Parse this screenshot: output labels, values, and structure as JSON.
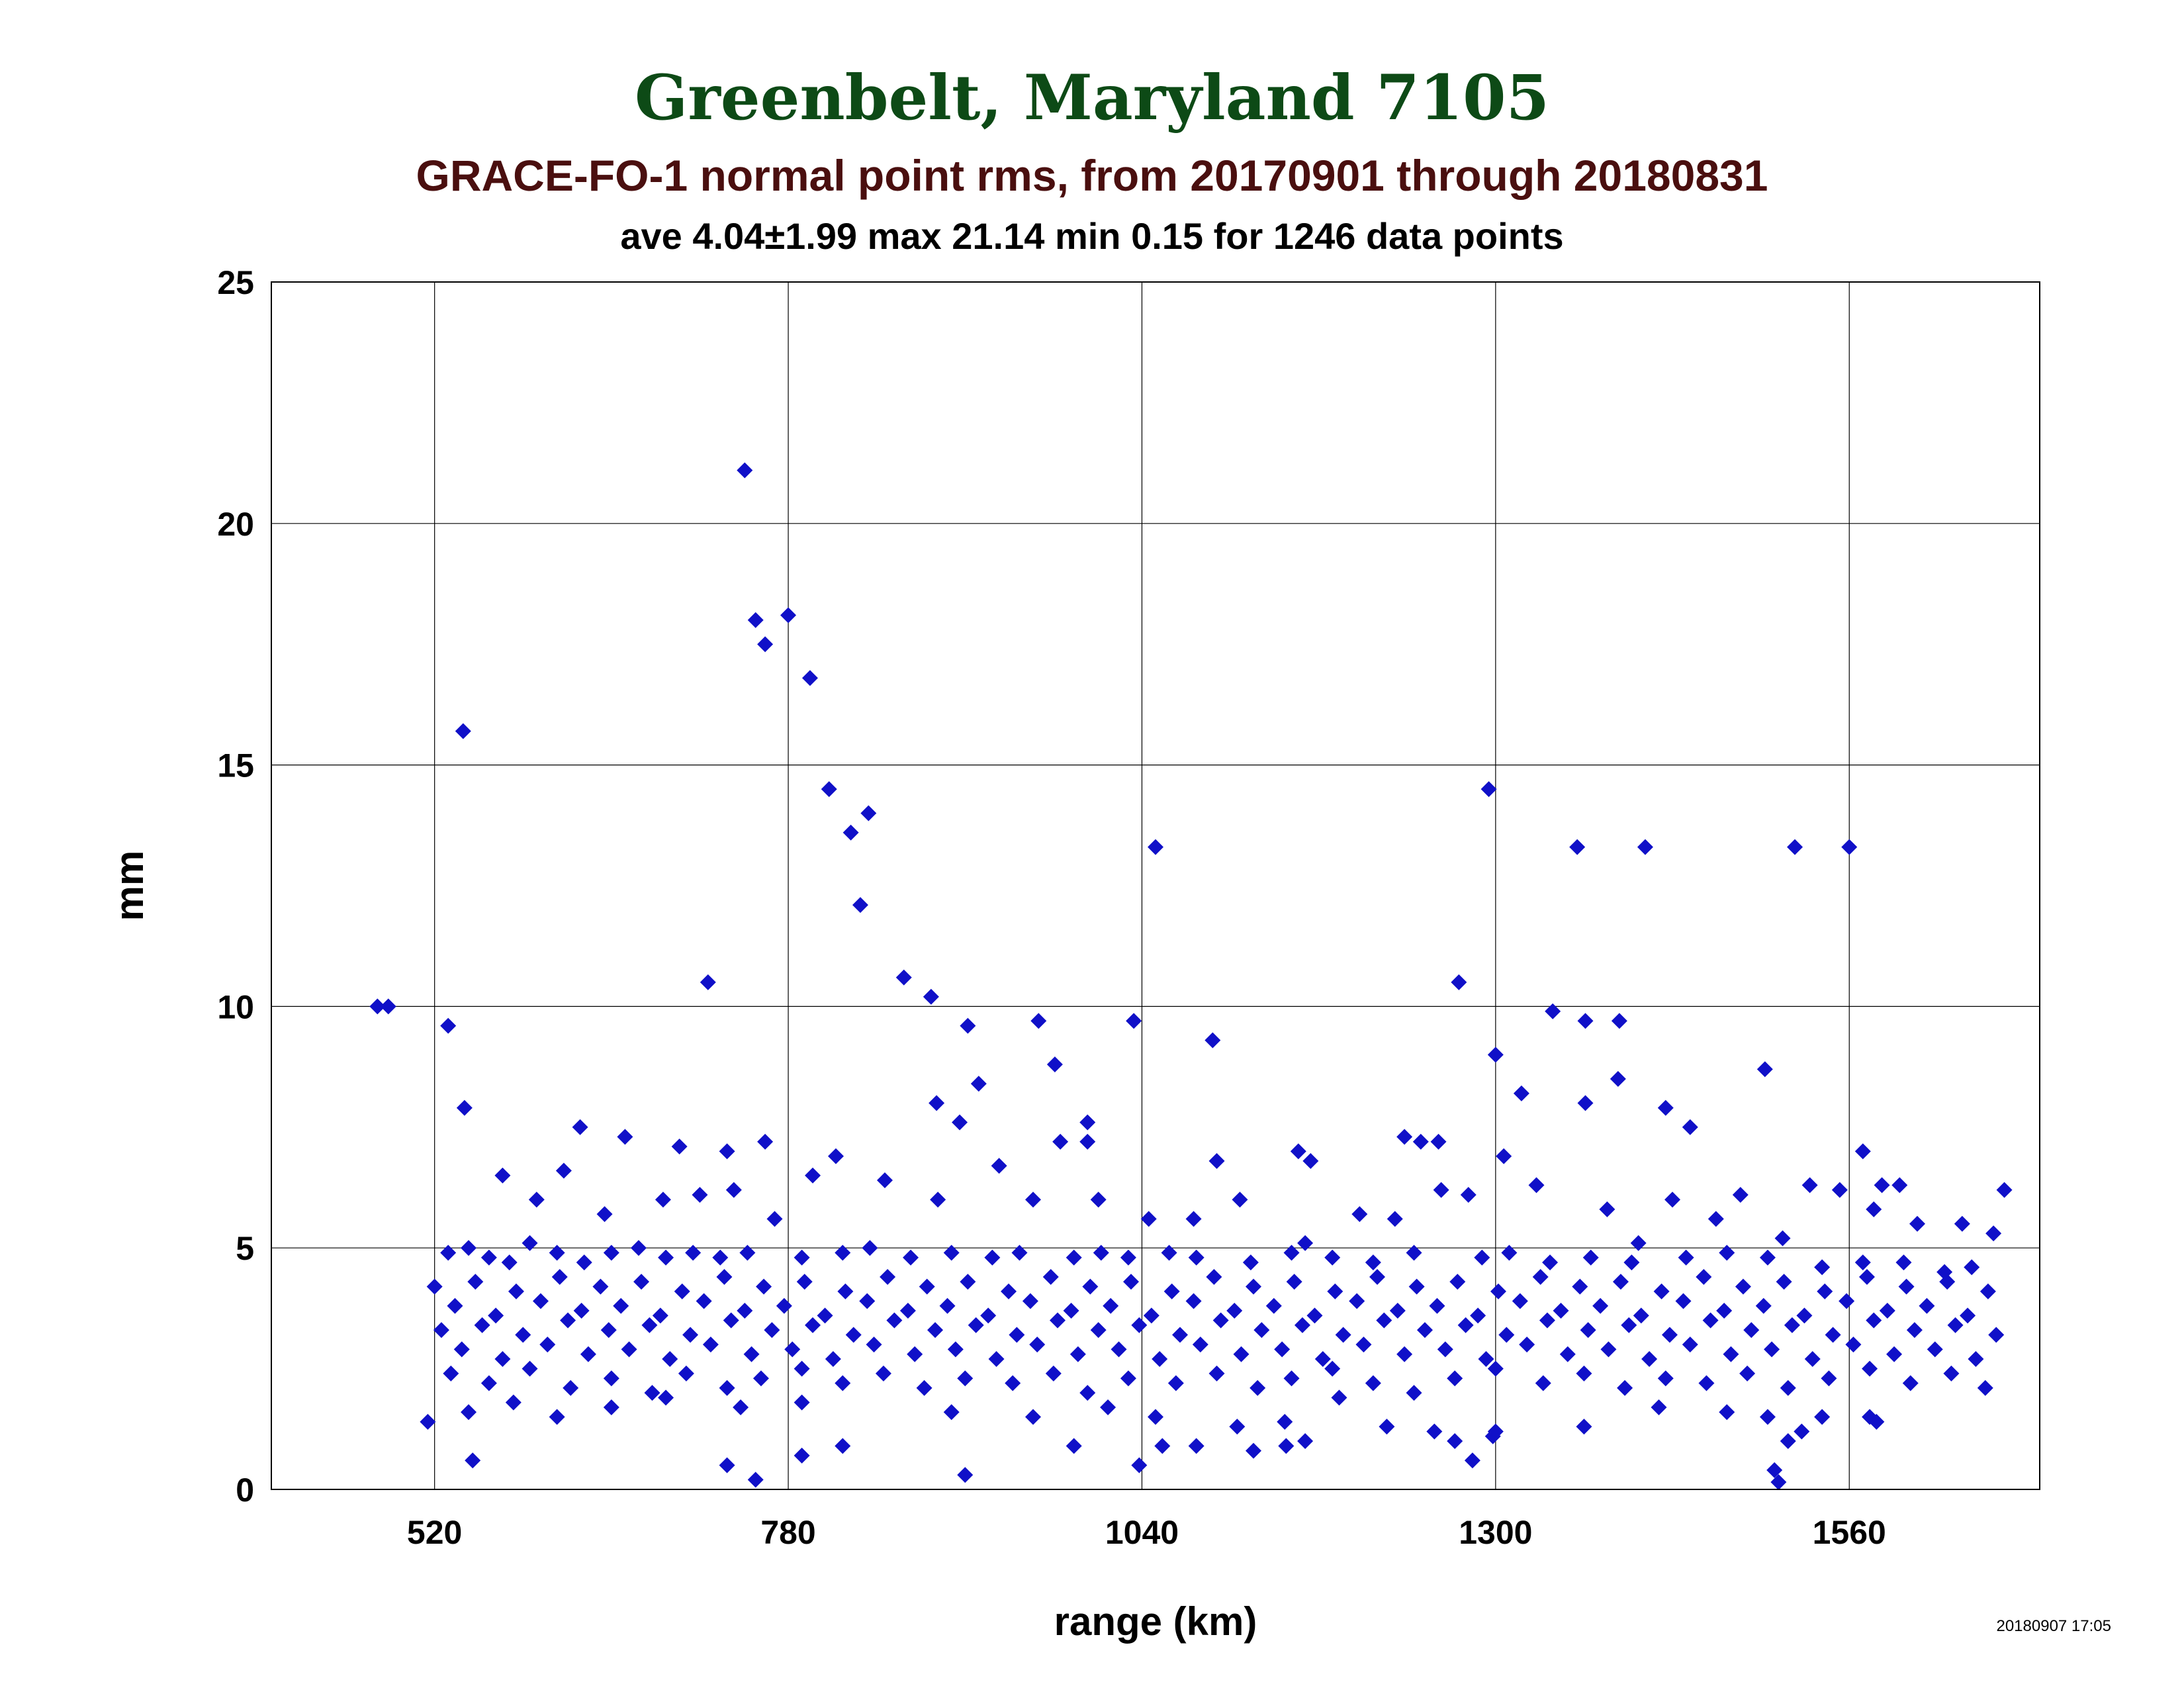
{
  "page": {
    "title": "Greenbelt, Maryland 7105",
    "subtitle": "GRACE-FO-1 normal point rms, from 20170901 through 20180831",
    "stats": "ave 4.04±1.99 max 21.14 min 0.15 for 1246 data points",
    "timestamp": "20180907 17:05"
  },
  "colors": {
    "title": "#0d4a16",
    "subtitle": "#4a0f0f",
    "text": "#000000",
    "points": "#1010c8",
    "grid": "#000000"
  },
  "chart_data": {
    "type": "scatter",
    "xlabel": "range (km)",
    "ylabel": "mm",
    "xlim": [
      400,
      1700
    ],
    "ylim": [
      0,
      25
    ],
    "xticks": [
      "520",
      "780",
      "1040",
      "1300",
      "1560"
    ],
    "yticks": [
      "0",
      "5",
      "10",
      "15",
      "20",
      "25"
    ],
    "grid": true,
    "marker": "diamond",
    "points": [
      [
        748,
        21.1
      ],
      [
        756,
        18.0
      ],
      [
        780,
        18.1
      ],
      [
        763,
        17.5
      ],
      [
        796,
        16.8
      ],
      [
        541,
        15.7
      ],
      [
        810,
        14.5
      ],
      [
        839,
        14.0
      ],
      [
        826,
        13.6
      ],
      [
        1050,
        13.3
      ],
      [
        1295,
        14.5
      ],
      [
        1360,
        13.3
      ],
      [
        1410,
        13.3
      ],
      [
        1520,
        13.3
      ],
      [
        1560,
        13.3
      ],
      [
        833,
        12.1
      ],
      [
        478,
        10.0
      ],
      [
        486,
        10.0
      ],
      [
        865,
        10.6
      ],
      [
        721,
        10.5
      ],
      [
        1273,
        10.5
      ],
      [
        885,
        10.2
      ],
      [
        530,
        9.6
      ],
      [
        1034,
        9.7
      ],
      [
        1092,
        9.3
      ],
      [
        912,
        9.6
      ],
      [
        964,
        9.7
      ],
      [
        1342,
        9.9
      ],
      [
        1366,
        9.7
      ],
      [
        1391,
        9.7
      ],
      [
        1300,
        9.0
      ],
      [
        1498,
        8.7
      ],
      [
        920,
        8.4
      ],
      [
        889,
        8.0
      ],
      [
        1366,
        8.0
      ],
      [
        1390,
        8.5
      ],
      [
        1425,
        7.9
      ],
      [
        906,
        7.6
      ],
      [
        976,
        8.8
      ],
      [
        1000,
        7.6
      ],
      [
        542,
        7.9
      ],
      [
        627,
        7.5
      ],
      [
        660,
        7.3
      ],
      [
        700,
        7.1
      ],
      [
        735,
        7.0
      ],
      [
        763,
        7.2
      ],
      [
        815,
        6.9
      ],
      [
        980,
        7.2
      ],
      [
        1000,
        7.2
      ],
      [
        1095,
        6.8
      ],
      [
        1155,
        7.0
      ],
      [
        1164,
        6.8
      ],
      [
        1233,
        7.3
      ],
      [
        1245,
        7.2
      ],
      [
        1258,
        7.2
      ],
      [
        1306,
        6.9
      ],
      [
        1319,
        8.2
      ],
      [
        1443,
        7.5
      ],
      [
        1570,
        7.0
      ],
      [
        1584,
        6.3
      ],
      [
        1597,
        6.3
      ],
      [
        1674,
        6.2
      ],
      [
        570,
        6.5
      ],
      [
        595,
        6.0
      ],
      [
        615,
        6.6
      ],
      [
        645,
        5.7
      ],
      [
        688,
        6.0
      ],
      [
        715,
        6.1
      ],
      [
        740,
        6.2
      ],
      [
        770,
        5.6
      ],
      [
        798,
        6.5
      ],
      [
        851,
        6.4
      ],
      [
        890,
        6.0
      ],
      [
        935,
        6.7
      ],
      [
        960,
        6.0
      ],
      [
        1008,
        6.0
      ],
      [
        1045,
        5.6
      ],
      [
        1078,
        5.6
      ],
      [
        1112,
        6.0
      ],
      [
        1160,
        5.1
      ],
      [
        1200,
        5.7
      ],
      [
        1226,
        5.6
      ],
      [
        1260,
        6.2
      ],
      [
        1280,
        6.1
      ],
      [
        1330,
        6.3
      ],
      [
        1382,
        5.8
      ],
      [
        1405,
        5.1
      ],
      [
        1430,
        6.0
      ],
      [
        1462,
        5.6
      ],
      [
        1480,
        6.1
      ],
      [
        1511,
        5.2
      ],
      [
        1531,
        6.3
      ],
      [
        1553,
        6.2
      ],
      [
        1578,
        5.8
      ],
      [
        1610,
        5.5
      ],
      [
        1643,
        5.5
      ],
      [
        1666,
        5.3
      ],
      [
        530,
        4.9
      ],
      [
        545,
        5.0
      ],
      [
        560,
        4.8
      ],
      [
        575,
        4.7
      ],
      [
        590,
        5.1
      ],
      [
        610,
        4.9
      ],
      [
        630,
        4.7
      ],
      [
        650,
        4.9
      ],
      [
        670,
        5.0
      ],
      [
        690,
        4.8
      ],
      [
        710,
        4.9
      ],
      [
        730,
        4.8
      ],
      [
        750,
        4.9
      ],
      [
        790,
        4.8
      ],
      [
        820,
        4.9
      ],
      [
        840,
        5.0
      ],
      [
        870,
        4.8
      ],
      [
        900,
        4.9
      ],
      [
        930,
        4.8
      ],
      [
        950,
        4.9
      ],
      [
        990,
        4.8
      ],
      [
        1010,
        4.9
      ],
      [
        1030,
        4.8
      ],
      [
        1060,
        4.9
      ],
      [
        1080,
        4.8
      ],
      [
        1120,
        4.7
      ],
      [
        1150,
        4.9
      ],
      [
        1180,
        4.8
      ],
      [
        1210,
        4.7
      ],
      [
        1240,
        4.9
      ],
      [
        1290,
        4.8
      ],
      [
        1310,
        4.9
      ],
      [
        1340,
        4.7
      ],
      [
        1370,
        4.8
      ],
      [
        1400,
        4.7
      ],
      [
        1440,
        4.8
      ],
      [
        1470,
        4.9
      ],
      [
        1500,
        4.8
      ],
      [
        1540,
        4.6
      ],
      [
        1570,
        4.7
      ],
      [
        1600,
        4.7
      ],
      [
        1630,
        4.5
      ],
      [
        1650,
        4.6
      ],
      [
        520,
        4.2
      ],
      [
        535,
        3.8
      ],
      [
        550,
        4.3
      ],
      [
        565,
        3.6
      ],
      [
        580,
        4.1
      ],
      [
        598,
        3.9
      ],
      [
        612,
        4.4
      ],
      [
        628,
        3.7
      ],
      [
        642,
        4.2
      ],
      [
        657,
        3.8
      ],
      [
        672,
        4.3
      ],
      [
        686,
        3.6
      ],
      [
        702,
        4.1
      ],
      [
        718,
        3.9
      ],
      [
        733,
        4.4
      ],
      [
        748,
        3.7
      ],
      [
        762,
        4.2
      ],
      [
        777,
        3.8
      ],
      [
        792,
        4.3
      ],
      [
        807,
        3.6
      ],
      [
        822,
        4.1
      ],
      [
        838,
        3.9
      ],
      [
        853,
        4.4
      ],
      [
        868,
        3.7
      ],
      [
        882,
        4.2
      ],
      [
        897,
        3.8
      ],
      [
        912,
        4.3
      ],
      [
        927,
        3.6
      ],
      [
        942,
        4.1
      ],
      [
        958,
        3.9
      ],
      [
        973,
        4.4
      ],
      [
        988,
        3.7
      ],
      [
        1002,
        4.2
      ],
      [
        1017,
        3.8
      ],
      [
        1032,
        4.3
      ],
      [
        1047,
        3.6
      ],
      [
        1062,
        4.1
      ],
      [
        1078,
        3.9
      ],
      [
        1093,
        4.4
      ],
      [
        1108,
        3.7
      ],
      [
        1122,
        4.2
      ],
      [
        1137,
        3.8
      ],
      [
        1152,
        4.3
      ],
      [
        1167,
        3.6
      ],
      [
        1182,
        4.1
      ],
      [
        1198,
        3.9
      ],
      [
        1213,
        4.4
      ],
      [
        1228,
        3.7
      ],
      [
        1242,
        4.2
      ],
      [
        1257,
        3.8
      ],
      [
        1272,
        4.3
      ],
      [
        1287,
        3.6
      ],
      [
        1302,
        4.1
      ],
      [
        1318,
        3.9
      ],
      [
        1333,
        4.4
      ],
      [
        1348,
        3.7
      ],
      [
        1362,
        4.2
      ],
      [
        1377,
        3.8
      ],
      [
        1392,
        4.3
      ],
      [
        1407,
        3.6
      ],
      [
        1422,
        4.1
      ],
      [
        1438,
        3.9
      ],
      [
        1453,
        4.4
      ],
      [
        1468,
        3.7
      ],
      [
        1482,
        4.2
      ],
      [
        1497,
        3.8
      ],
      [
        1512,
        4.3
      ],
      [
        1527,
        3.6
      ],
      [
        1542,
        4.1
      ],
      [
        1558,
        3.9
      ],
      [
        1573,
        4.4
      ],
      [
        1588,
        3.7
      ],
      [
        1602,
        4.2
      ],
      [
        1617,
        3.8
      ],
      [
        1632,
        4.3
      ],
      [
        1647,
        3.6
      ],
      [
        1662,
        4.1
      ],
      [
        525,
        3.3
      ],
      [
        540,
        2.9
      ],
      [
        555,
        3.4
      ],
      [
        570,
        2.7
      ],
      [
        585,
        3.2
      ],
      [
        603,
        3.0
      ],
      [
        618,
        3.5
      ],
      [
        633,
        2.8
      ],
      [
        648,
        3.3
      ],
      [
        663,
        2.9
      ],
      [
        678,
        3.4
      ],
      [
        693,
        2.7
      ],
      [
        708,
        3.2
      ],
      [
        723,
        3.0
      ],
      [
        738,
        3.5
      ],
      [
        753,
        2.8
      ],
      [
        768,
        3.3
      ],
      [
        783,
        2.9
      ],
      [
        798,
        3.4
      ],
      [
        813,
        2.7
      ],
      [
        828,
        3.2
      ],
      [
        843,
        3.0
      ],
      [
        858,
        3.5
      ],
      [
        873,
        2.8
      ],
      [
        888,
        3.3
      ],
      [
        903,
        2.9
      ],
      [
        918,
        3.4
      ],
      [
        933,
        2.7
      ],
      [
        948,
        3.2
      ],
      [
        963,
        3.0
      ],
      [
        978,
        3.5
      ],
      [
        993,
        2.8
      ],
      [
        1008,
        3.3
      ],
      [
        1023,
        2.9
      ],
      [
        1038,
        3.4
      ],
      [
        1053,
        2.7
      ],
      [
        1068,
        3.2
      ],
      [
        1083,
        3.0
      ],
      [
        1098,
        3.5
      ],
      [
        1113,
        2.8
      ],
      [
        1128,
        3.3
      ],
      [
        1143,
        2.9
      ],
      [
        1158,
        3.4
      ],
      [
        1173,
        2.7
      ],
      [
        1188,
        3.2
      ],
      [
        1203,
        3.0
      ],
      [
        1218,
        3.5
      ],
      [
        1233,
        2.8
      ],
      [
        1248,
        3.3
      ],
      [
        1263,
        2.9
      ],
      [
        1278,
        3.4
      ],
      [
        1293,
        2.7
      ],
      [
        1308,
        3.2
      ],
      [
        1323,
        3.0
      ],
      [
        1338,
        3.5
      ],
      [
        1353,
        2.8
      ],
      [
        1368,
        3.3
      ],
      [
        1383,
        2.9
      ],
      [
        1398,
        3.4
      ],
      [
        1413,
        2.7
      ],
      [
        1428,
        3.2
      ],
      [
        1443,
        3.0
      ],
      [
        1458,
        3.5
      ],
      [
        1473,
        2.8
      ],
      [
        1488,
        3.3
      ],
      [
        1503,
        2.9
      ],
      [
        1518,
        3.4
      ],
      [
        1533,
        2.7
      ],
      [
        1548,
        3.2
      ],
      [
        1563,
        3.0
      ],
      [
        1578,
        3.5
      ],
      [
        1593,
        2.8
      ],
      [
        1608,
        3.3
      ],
      [
        1623,
        2.9
      ],
      [
        1638,
        3.4
      ],
      [
        1653,
        2.7
      ],
      [
        1668,
        3.2
      ],
      [
        532,
        2.4
      ],
      [
        560,
        2.2
      ],
      [
        590,
        2.5
      ],
      [
        620,
        2.1
      ],
      [
        650,
        2.3
      ],
      [
        680,
        2.0
      ],
      [
        705,
        2.4
      ],
      [
        735,
        2.1
      ],
      [
        760,
        2.3
      ],
      [
        790,
        2.5
      ],
      [
        820,
        2.2
      ],
      [
        850,
        2.4
      ],
      [
        880,
        2.1
      ],
      [
        910,
        2.3
      ],
      [
        945,
        2.2
      ],
      [
        975,
        2.4
      ],
      [
        1000,
        2.0
      ],
      [
        1030,
        2.3
      ],
      [
        1065,
        2.2
      ],
      [
        1095,
        2.4
      ],
      [
        1125,
        2.1
      ],
      [
        1150,
        2.3
      ],
      [
        1180,
        2.5
      ],
      [
        1210,
        2.2
      ],
      [
        1240,
        2.0
      ],
      [
        1270,
        2.3
      ],
      [
        1300,
        2.5
      ],
      [
        1335,
        2.2
      ],
      [
        1365,
        2.4
      ],
      [
        1395,
        2.1
      ],
      [
        1425,
        2.3
      ],
      [
        1455,
        2.2
      ],
      [
        1485,
        2.4
      ],
      [
        1515,
        2.1
      ],
      [
        1545,
        2.3
      ],
      [
        1575,
        2.5
      ],
      [
        1605,
        2.2
      ],
      [
        1635,
        2.4
      ],
      [
        1660,
        2.1
      ],
      [
        515,
        1.4
      ],
      [
        545,
        1.6
      ],
      [
        578,
        1.8
      ],
      [
        610,
        1.5
      ],
      [
        650,
        1.7
      ],
      [
        690,
        1.9
      ],
      [
        745,
        1.7
      ],
      [
        790,
        1.8
      ],
      [
        900,
        1.6
      ],
      [
        960,
        1.5
      ],
      [
        1015,
        1.7
      ],
      [
        1050,
        1.5
      ],
      [
        1110,
        1.3
      ],
      [
        1145,
        1.4
      ],
      [
        1185,
        1.9
      ],
      [
        1220,
        1.3
      ],
      [
        1255,
        1.2
      ],
      [
        1300,
        1.2
      ],
      [
        1365,
        1.3
      ],
      [
        1420,
        1.7
      ],
      [
        1470,
        1.6
      ],
      [
        1500,
        1.5
      ],
      [
        1525,
        1.2
      ],
      [
        1540,
        1.5
      ],
      [
        1575,
        1.5
      ],
      [
        1580,
        1.4
      ],
      [
        548,
        0.6
      ],
      [
        735,
        0.5
      ],
      [
        756,
        0.2
      ],
      [
        790,
        0.7
      ],
      [
        820,
        0.9
      ],
      [
        910,
        0.3
      ],
      [
        990,
        0.9
      ],
      [
        1038,
        0.5
      ],
      [
        1055,
        0.9
      ],
      [
        1080,
        0.9
      ],
      [
        1122,
        0.8
      ],
      [
        1146,
        0.9
      ],
      [
        1160,
        1.0
      ],
      [
        1270,
        1.0
      ],
      [
        1283,
        0.6
      ],
      [
        1298,
        1.1
      ],
      [
        1505,
        0.4
      ],
      [
        1508,
        0.15
      ],
      [
        1515,
        1.0
      ]
    ]
  }
}
